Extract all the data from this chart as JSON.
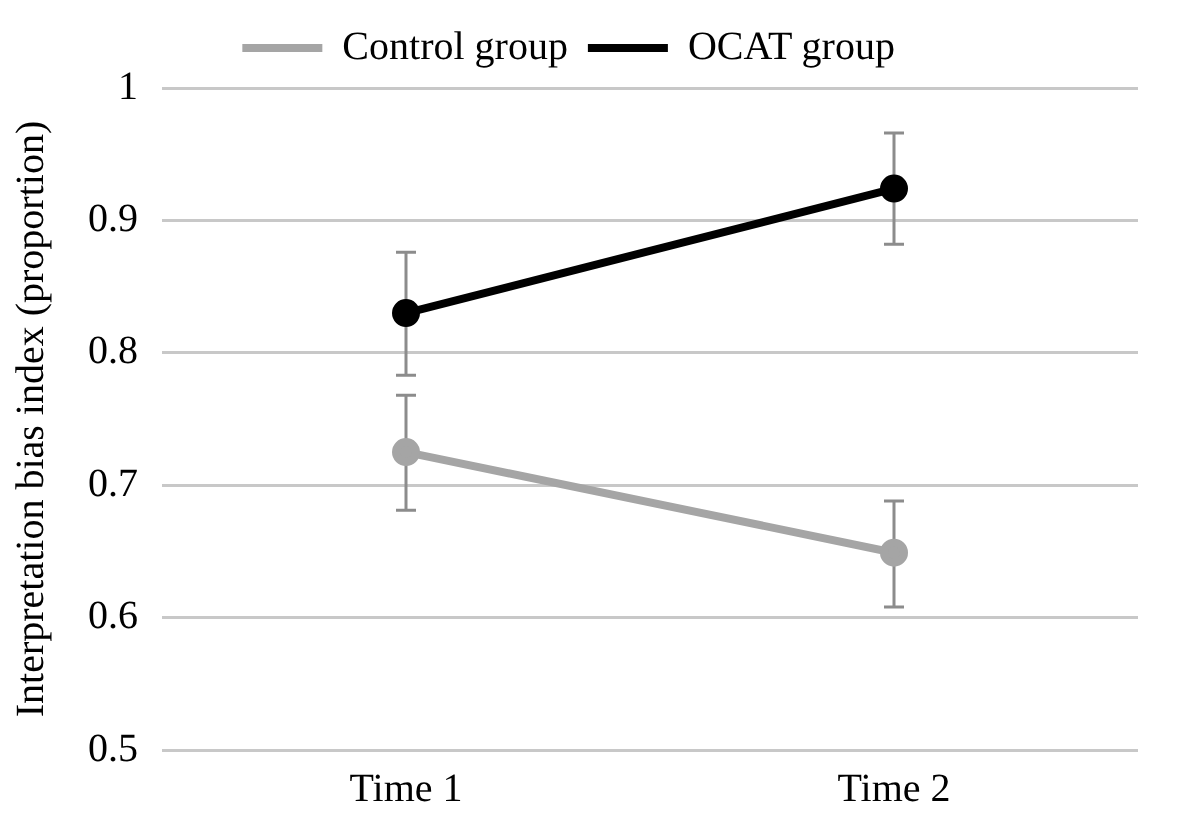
{
  "chart_data": {
    "type": "line",
    "ylabel": "Interpretation bias index (proportion)",
    "categories": [
      "Time 1",
      "Time 2"
    ],
    "series": [
      {
        "name": "Control group",
        "color": "#a5a5a5",
        "values": [
          0.725,
          0.649
        ],
        "errors": [
          [
            0.681,
            0.768
          ],
          [
            0.608,
            0.688
          ]
        ]
      },
      {
        "name": "OCAT group",
        "color": "#000000",
        "values": [
          0.83,
          0.924
        ],
        "errors": [
          [
            0.783,
            0.876
          ],
          [
            0.882,
            0.966
          ]
        ]
      }
    ],
    "ylim": [
      0.5,
      1
    ],
    "yticks": [
      0.5,
      0.6,
      0.7,
      0.8,
      0.9,
      1
    ],
    "grid": "y",
    "legend": "top",
    "marker": "circle",
    "line_style": "solid"
  }
}
